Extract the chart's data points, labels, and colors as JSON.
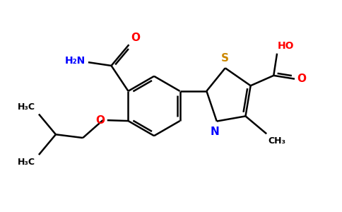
{
  "background_color": "#ffffff",
  "bond_color": "#000000",
  "oxygen_color": "#ff0000",
  "nitrogen_color": "#0000ff",
  "sulfur_color": "#cc8800",
  "line_width": 1.8,
  "xlim": [
    0,
    10
  ],
  "ylim": [
    0,
    6.2
  ]
}
